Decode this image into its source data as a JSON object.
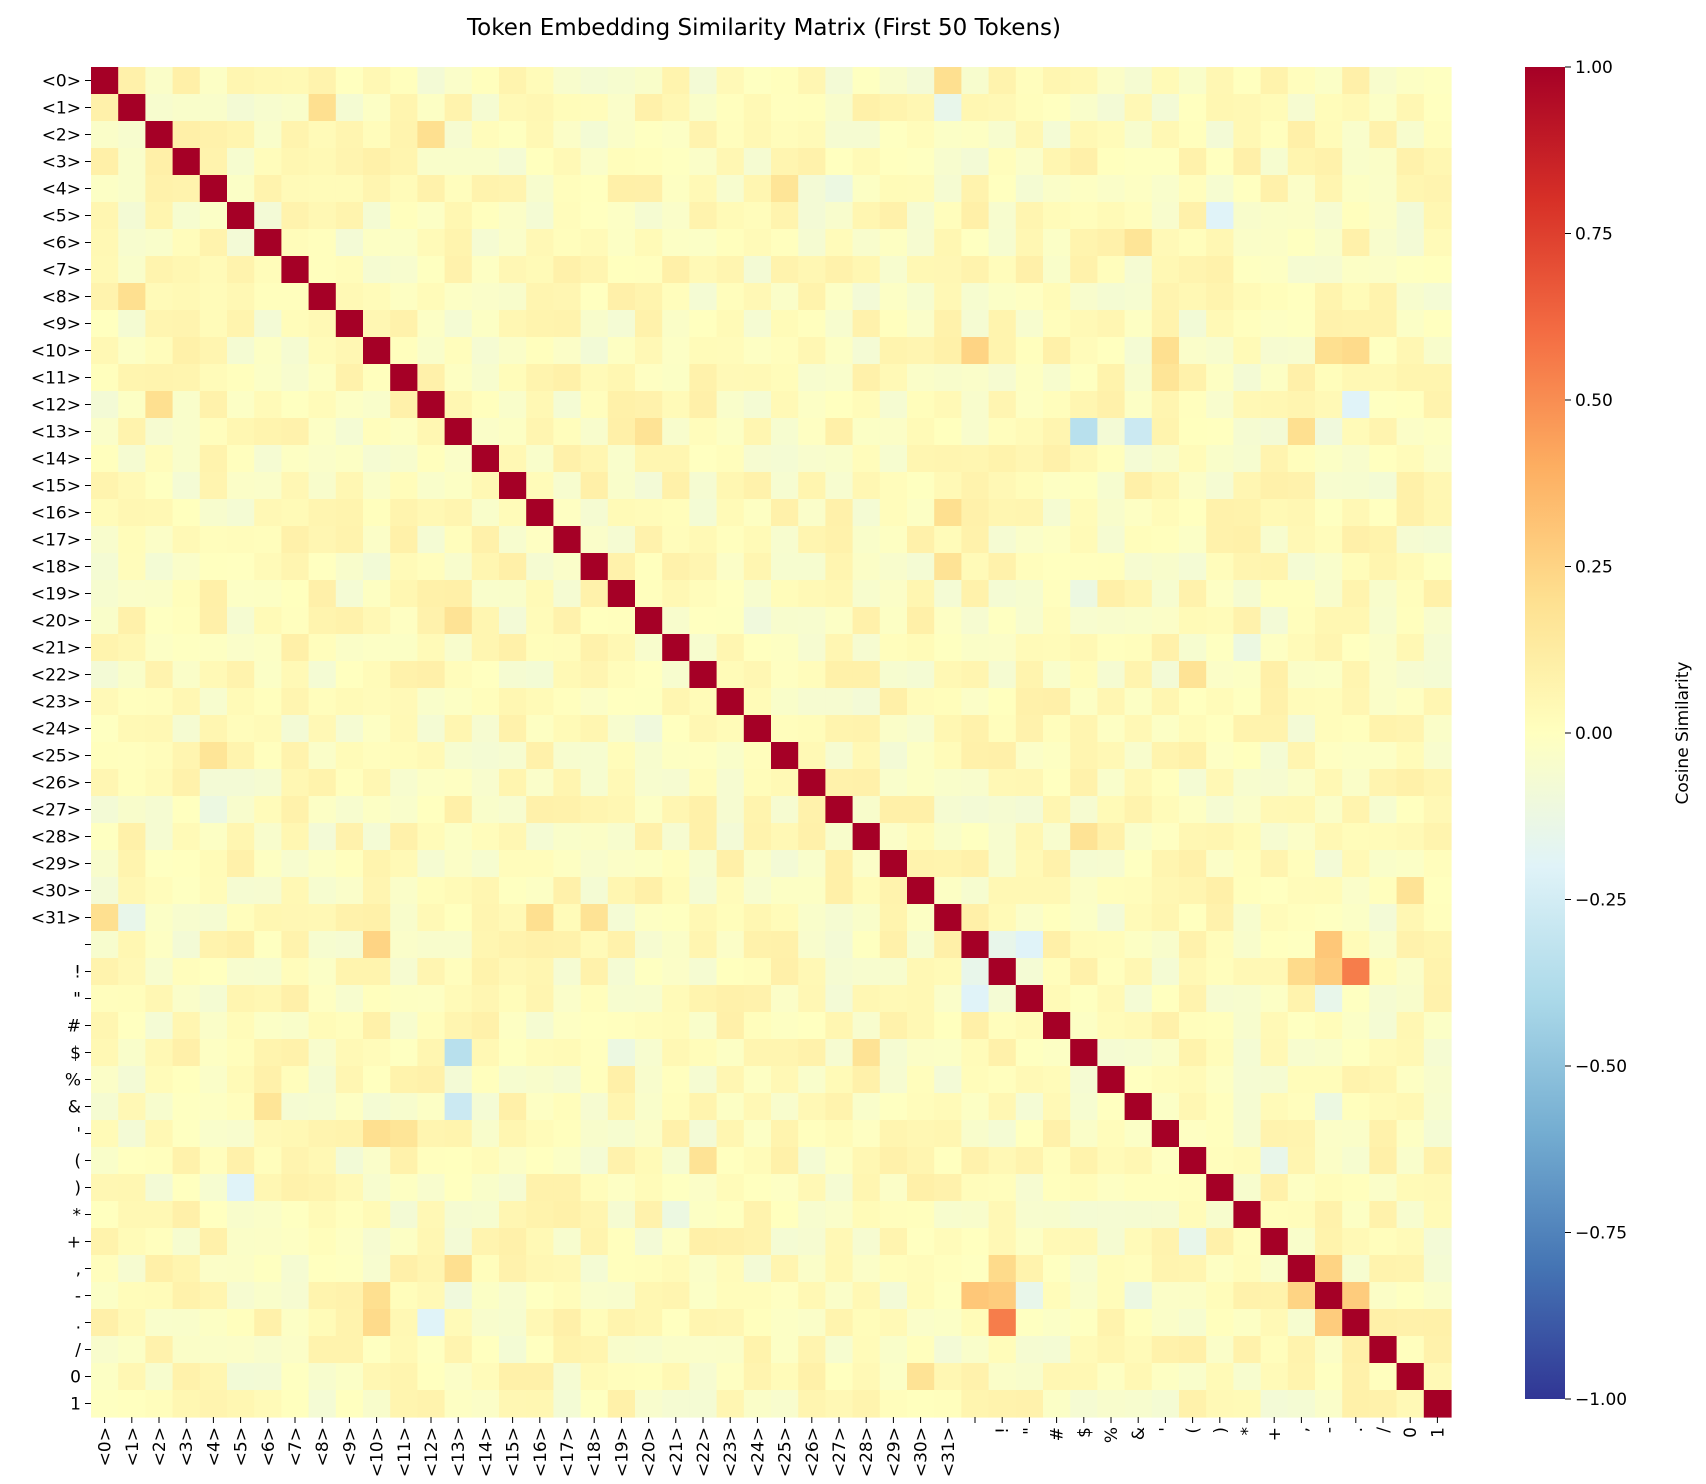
{
  "chart_data": {
    "type": "heatmap",
    "title": "Token Embedding Similarity Matrix (First 50 Tokens)",
    "labels": [
      "<0>",
      "<1>",
      "<2>",
      "<3>",
      "<4>",
      "<5>",
      "<6>",
      "<7>",
      "<8>",
      "<9>",
      "<10>",
      "<11>",
      "<12>",
      "<13>",
      "<14>",
      "<15>",
      "<16>",
      "<17>",
      "<18>",
      "<19>",
      "<20>",
      "<21>",
      "<22>",
      "<23>",
      "<24>",
      "<25>",
      "<26>",
      "<27>",
      "<28>",
      "<29>",
      "<30>",
      "<31>",
      " ",
      "!",
      "\"",
      "#",
      "$",
      "%",
      "&",
      "'",
      "(",
      ")",
      "*",
      "+",
      ",",
      "-",
      ".",
      "/",
      "0",
      "1"
    ],
    "colorbar": {
      "label": "Cosine Similarity",
      "range": [
        -1,
        1
      ],
      "ticks": [
        1.0,
        0.75,
        0.5,
        0.25,
        0.0,
        -0.25,
        -0.5,
        -0.75,
        -1.0
      ],
      "tick_labels": [
        "1.00",
        "0.75",
        "0.50",
        "0.25",
        "0.00",
        "−0.25",
        "−0.50",
        "−0.75",
        "−1.00"
      ],
      "colormap": "RdYlBu_r"
    },
    "diagonal": 1.0,
    "off_diagonal": [
      {
        "cell": [
          "<0>",
          "<31>"
        ],
        "value": 0.2
      },
      {
        "cell": [
          "<1>",
          "<8>"
        ],
        "value": 0.2
      },
      {
        "cell": [
          "<1>",
          "<31>"
        ],
        "value": -0.15
      },
      {
        "cell": [
          "<2>",
          "<12>"
        ],
        "value": 0.2
      },
      {
        "cell": [
          "<4>",
          "<27>"
        ],
        "value": -0.12
      },
      {
        "cell": [
          "<4>",
          "<25>"
        ],
        "value": 0.17
      },
      {
        "cell": [
          "<5>",
          ")"
        ],
        "value": -0.2
      },
      {
        "cell": [
          "<6>",
          "&"
        ],
        "value": 0.17
      },
      {
        "cell": [
          "<10>",
          " "
        ],
        "value": 0.25
      },
      {
        "cell": [
          "<10>",
          "'"
        ],
        "value": 0.2
      },
      {
        "cell": [
          "<10>",
          "-"
        ],
        "value": 0.2
      },
      {
        "cell": [
          "<10>",
          "."
        ],
        "value": 0.22
      },
      {
        "cell": [
          "<11>",
          "'"
        ],
        "value": 0.17
      },
      {
        "cell": [
          "<12>",
          "."
        ],
        "value": -0.2
      },
      {
        "cell": [
          "<13>",
          "$"
        ],
        "value": -0.35
      },
      {
        "cell": [
          "<13>",
          "&"
        ],
        "value": -0.28
      },
      {
        "cell": [
          "<13>",
          ","
        ],
        "value": 0.2
      },
      {
        "cell": [
          "<13>",
          "<20>"
        ],
        "value": 0.18
      },
      {
        "cell": [
          "<13>",
          "-"
        ],
        "value": -0.1
      },
      {
        "cell": [
          "<16>",
          "<31>"
        ],
        "value": 0.2
      },
      {
        "cell": [
          "<18>",
          "<31>"
        ],
        "value": 0.18
      },
      {
        "cell": [
          "<19>",
          "$"
        ],
        "value": -0.12
      },
      {
        "cell": [
          "<21>",
          "*"
        ],
        "value": -0.12
      },
      {
        "cell": [
          "<22>",
          "("
        ],
        "value": 0.18
      },
      {
        "cell": [
          "<24>",
          "<20>"
        ],
        "value": -0.1
      },
      {
        "cell": [
          "<28>",
          "$"
        ],
        "value": 0.18
      },
      {
        "cell": [
          "<30>",
          "0"
        ],
        "value": 0.18
      },
      {
        "cell": [
          " ",
          "!"
        ],
        "value": -0.15
      },
      {
        "cell": [
          " ",
          "\""
        ],
        "value": -0.2
      },
      {
        "cell": [
          " ",
          "-"
        ],
        "value": 0.3
      },
      {
        "cell": [
          "!",
          "-"
        ],
        "value": 0.28
      },
      {
        "cell": [
          "!",
          "."
        ],
        "value": 0.55
      },
      {
        "cell": [
          "!",
          ","
        ],
        "value": 0.22
      },
      {
        "cell": [
          "\"",
          "-"
        ],
        "value": -0.15
      },
      {
        "cell": [
          "&",
          "-"
        ],
        "value": -0.12
      },
      {
        "cell": [
          "(",
          "+"
        ],
        "value": -0.15
      },
      {
        "cell": [
          ",",
          "-"
        ],
        "value": 0.25
      },
      {
        "cell": [
          "-",
          "."
        ],
        "value": 0.28
      }
    ]
  }
}
